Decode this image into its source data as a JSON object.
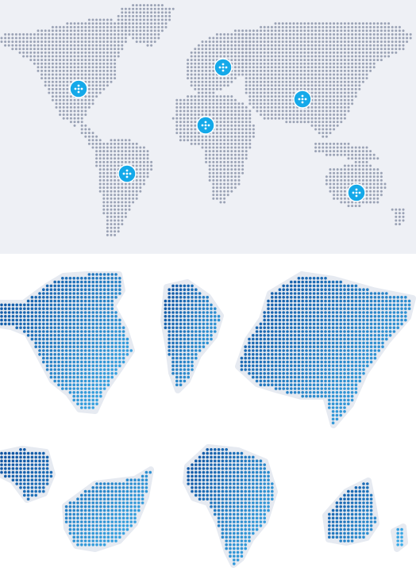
{
  "world_map": {
    "background": "#eef0f5",
    "dot_color": "#9aa2b5",
    "marker_color": "#15a9e9",
    "markers": [
      {
        "name": "north-america"
      },
      {
        "name": "europe"
      },
      {
        "name": "asia"
      },
      {
        "name": "africa"
      },
      {
        "name": "south-america"
      },
      {
        "name": "australia"
      }
    ]
  },
  "continents": {
    "style": "dotted-gradient",
    "color_dark": "#0d4f9e",
    "color_light": "#3fb3ee",
    "shadow_color": "#e6eaf1",
    "items": [
      {
        "name": "north-america"
      },
      {
        "name": "south-america"
      },
      {
        "name": "asia"
      },
      {
        "name": "europe"
      },
      {
        "name": "africa"
      },
      {
        "name": "australia"
      }
    ]
  }
}
